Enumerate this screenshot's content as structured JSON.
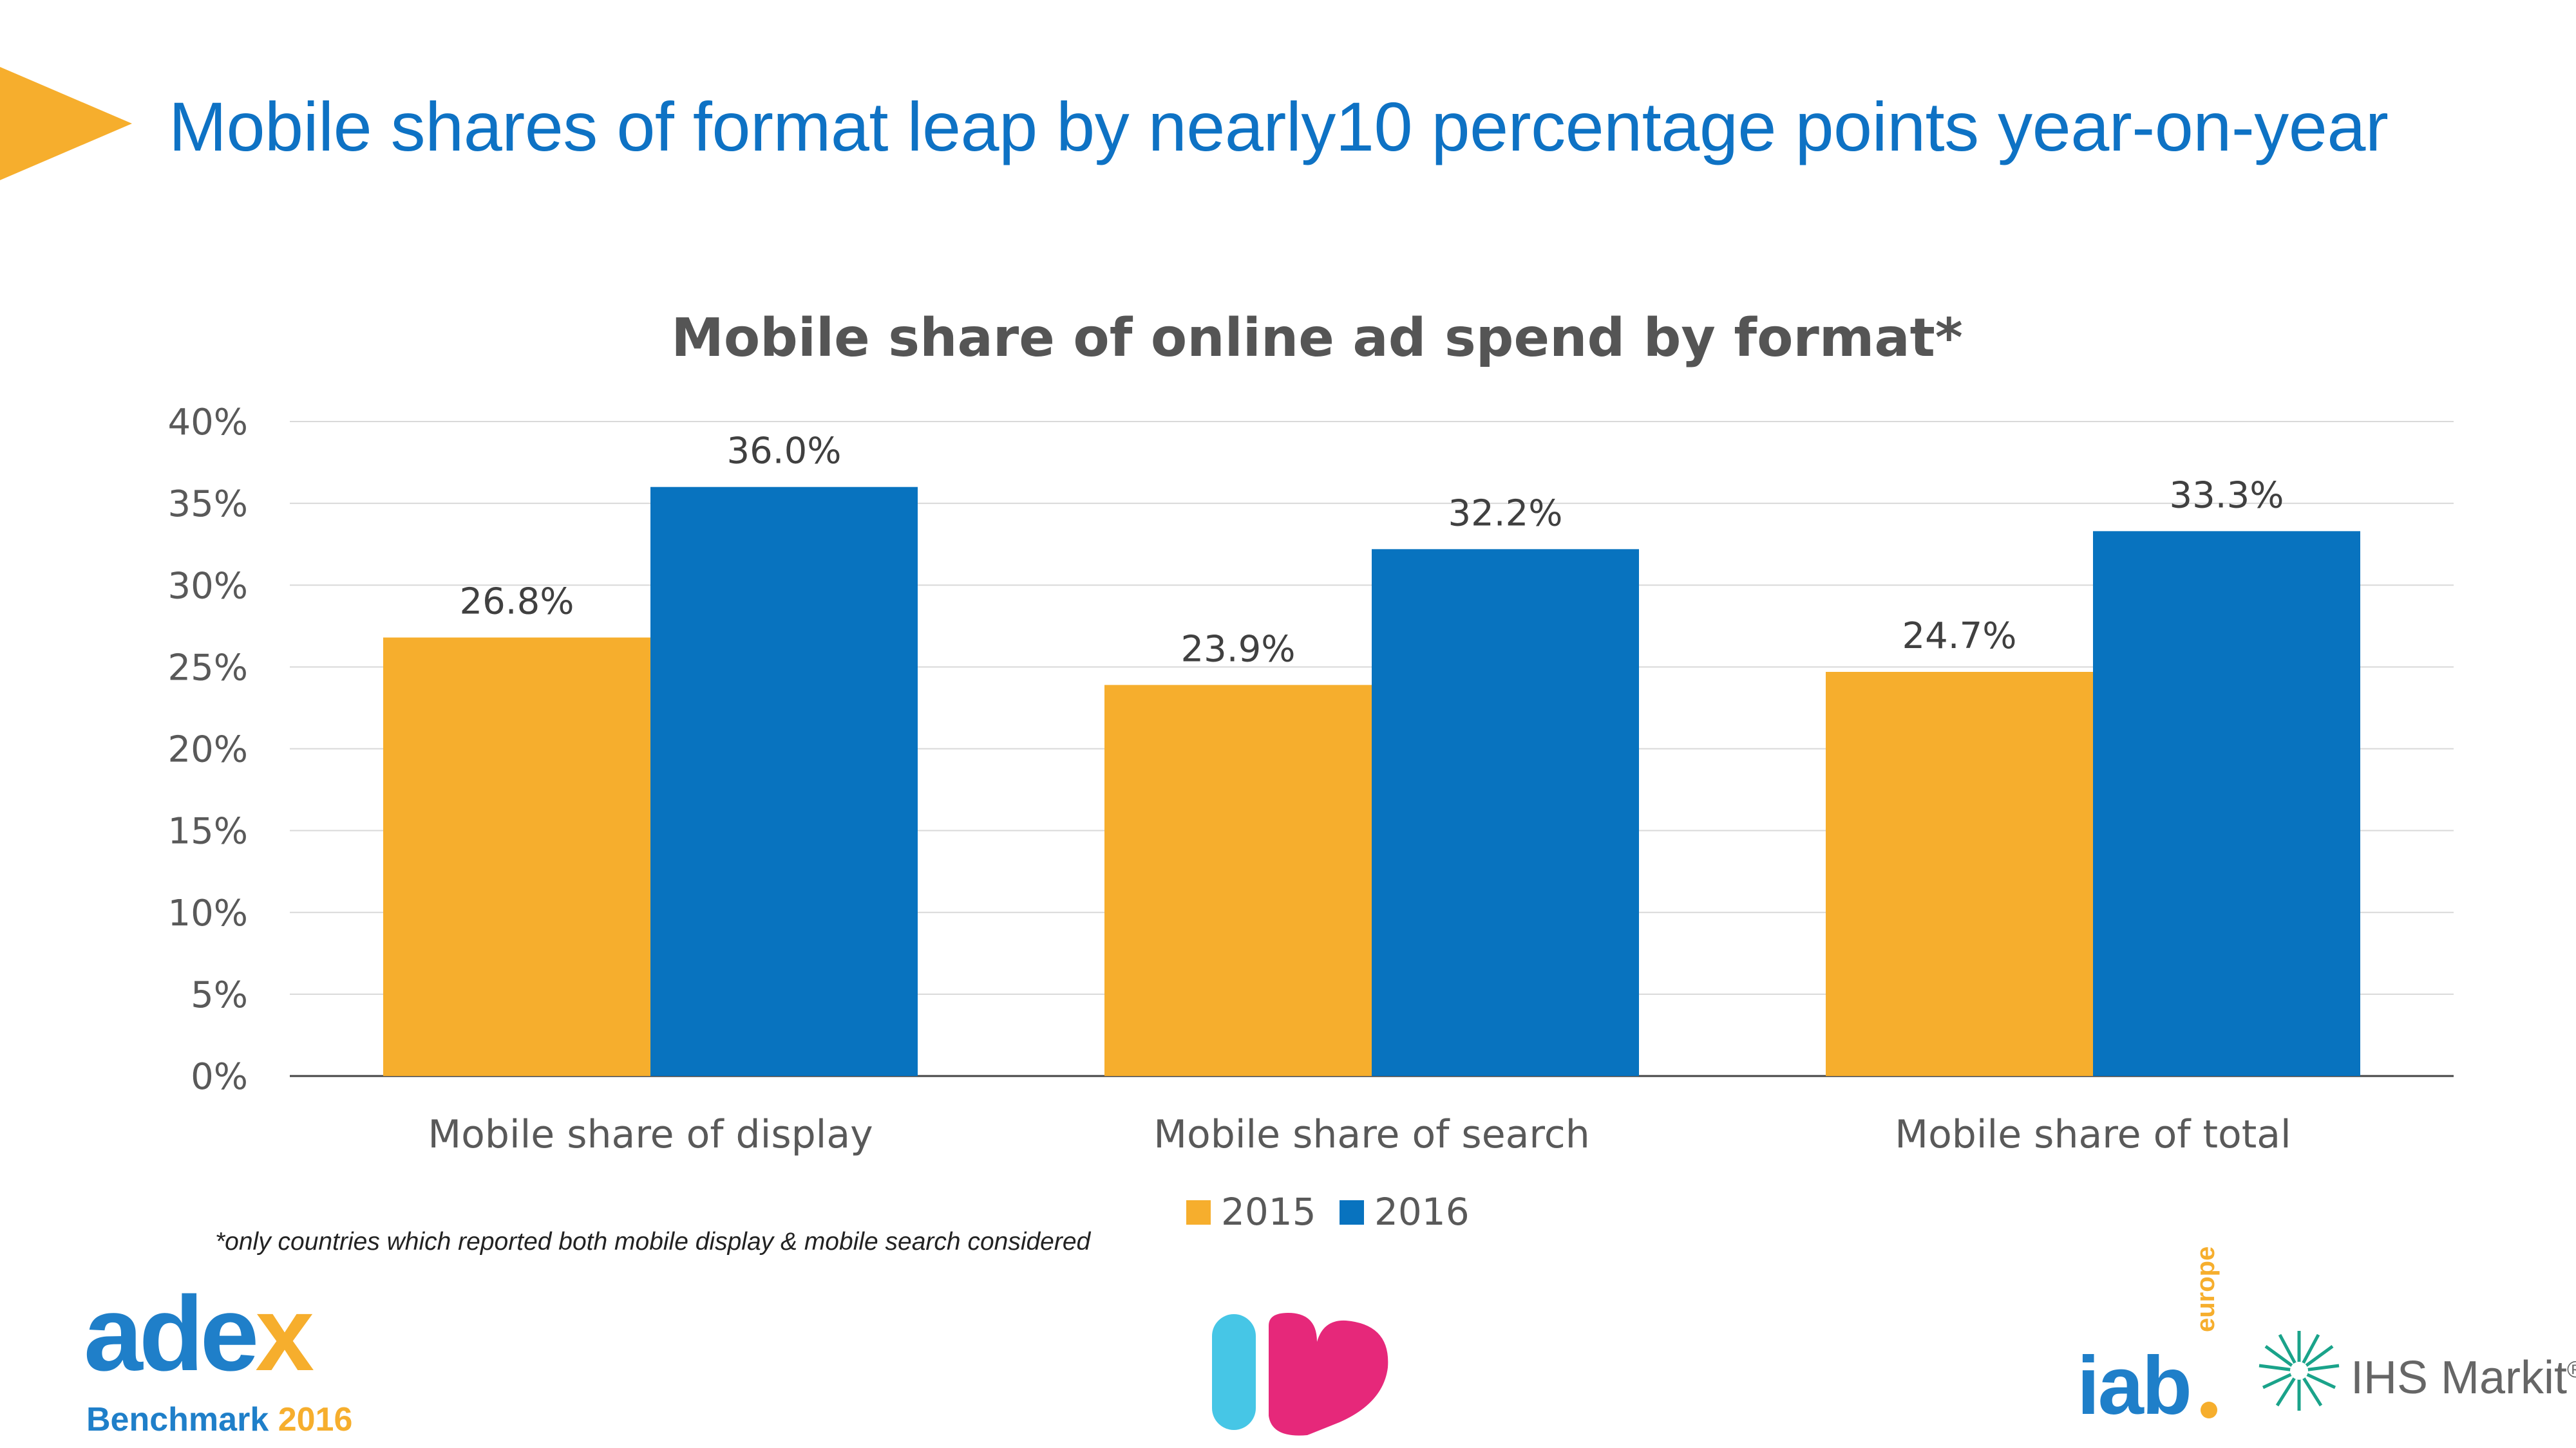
{
  "slide": {
    "title": "Mobile shares of format leap by nearly10 percentage points year-on-year",
    "footnote": "*only countries which reported both mobile display & mobile search considered"
  },
  "logos": {
    "adex": {
      "word_main": "ade",
      "word_accent": "x",
      "sub_main": "Benchmark ",
      "sub_year": "2016"
    },
    "iab": {
      "word": "iab",
      "europe": "europe"
    },
    "ihs": {
      "word": "IHS Markit",
      "mark": "®"
    }
  },
  "colors": {
    "accent_orange": "#f6ae2d",
    "accent_blue": "#0e72c4",
    "series_2015": "#f6ae2d",
    "series_2016": "#0873bf",
    "heart_cyan": "#46c6e6",
    "heart_pink": "#e6287a"
  },
  "chart_data": {
    "type": "bar",
    "title": "Mobile share of online ad spend by format*",
    "xlabel": "",
    "ylabel": "",
    "categories": [
      "Mobile share of display",
      "Mobile share of search",
      "Mobile share of total"
    ],
    "series": [
      {
        "name": "2015",
        "values": [
          26.8,
          23.9,
          24.7
        ],
        "labels": [
          "26.8%",
          "23.9%",
          "24.7%"
        ]
      },
      {
        "name": "2016",
        "values": [
          36.0,
          32.2,
          33.3
        ],
        "labels": [
          "36.0%",
          "32.2%",
          "33.3%"
        ]
      }
    ],
    "ylim": [
      0,
      40
    ],
    "yticks": [
      0,
      5,
      10,
      15,
      20,
      25,
      30,
      35,
      40
    ],
    "ytick_labels": [
      "0%",
      "5%",
      "10%",
      "15%",
      "20%",
      "25%",
      "30%",
      "35%",
      "40%"
    ],
    "grid": true,
    "legend": "bottom-center"
  }
}
